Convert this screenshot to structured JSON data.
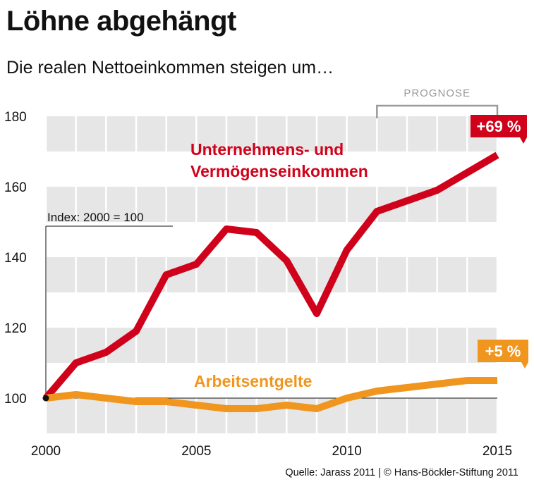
{
  "title": "Löhne abgehängt",
  "subtitle": "Die realen Nettoeinkommen steigen um…",
  "source": "Quelle: Jarass 2011 | © Hans-Böckler-Stiftung 2011",
  "colors": {
    "red": "#d0021b",
    "orange": "#f0961e",
    "band": "#e6e6e6"
  },
  "chart_data": {
    "type": "line",
    "x": [
      2000,
      2001,
      2002,
      2003,
      2004,
      2005,
      2006,
      2007,
      2008,
      2009,
      2010,
      2011,
      2012,
      2013,
      2014,
      2015
    ],
    "series": [
      {
        "name": "Unternehmens- und Vermögenseinkommen",
        "label_line1": "Unternehmens- und",
        "label_line2": "Vermögenseinkommen",
        "color": "#d0021b",
        "values": [
          100,
          110,
          113,
          119,
          135,
          138,
          148,
          147,
          139,
          124,
          142,
          153,
          156,
          159,
          164,
          169
        ],
        "end_label": "+69 %"
      },
      {
        "name": "Arbeitsentgelte",
        "color": "#f0961e",
        "values": [
          100,
          101,
          100,
          99,
          99,
          98,
          97,
          97,
          98,
          97,
          100,
          102,
          103,
          104,
          105,
          105
        ],
        "end_label": "+5 %"
      }
    ],
    "xticks": [
      2000,
      2005,
      2010,
      2015
    ],
    "yticks": [
      100,
      120,
      140,
      160,
      180
    ],
    "xlim": [
      2000,
      2015
    ],
    "ylim": [
      90,
      180
    ],
    "index_label": "Index: 2000 = 100",
    "forecast_label": "PROGNOSE",
    "forecast_range": [
      2011,
      2015
    ],
    "baseline": 100
  }
}
